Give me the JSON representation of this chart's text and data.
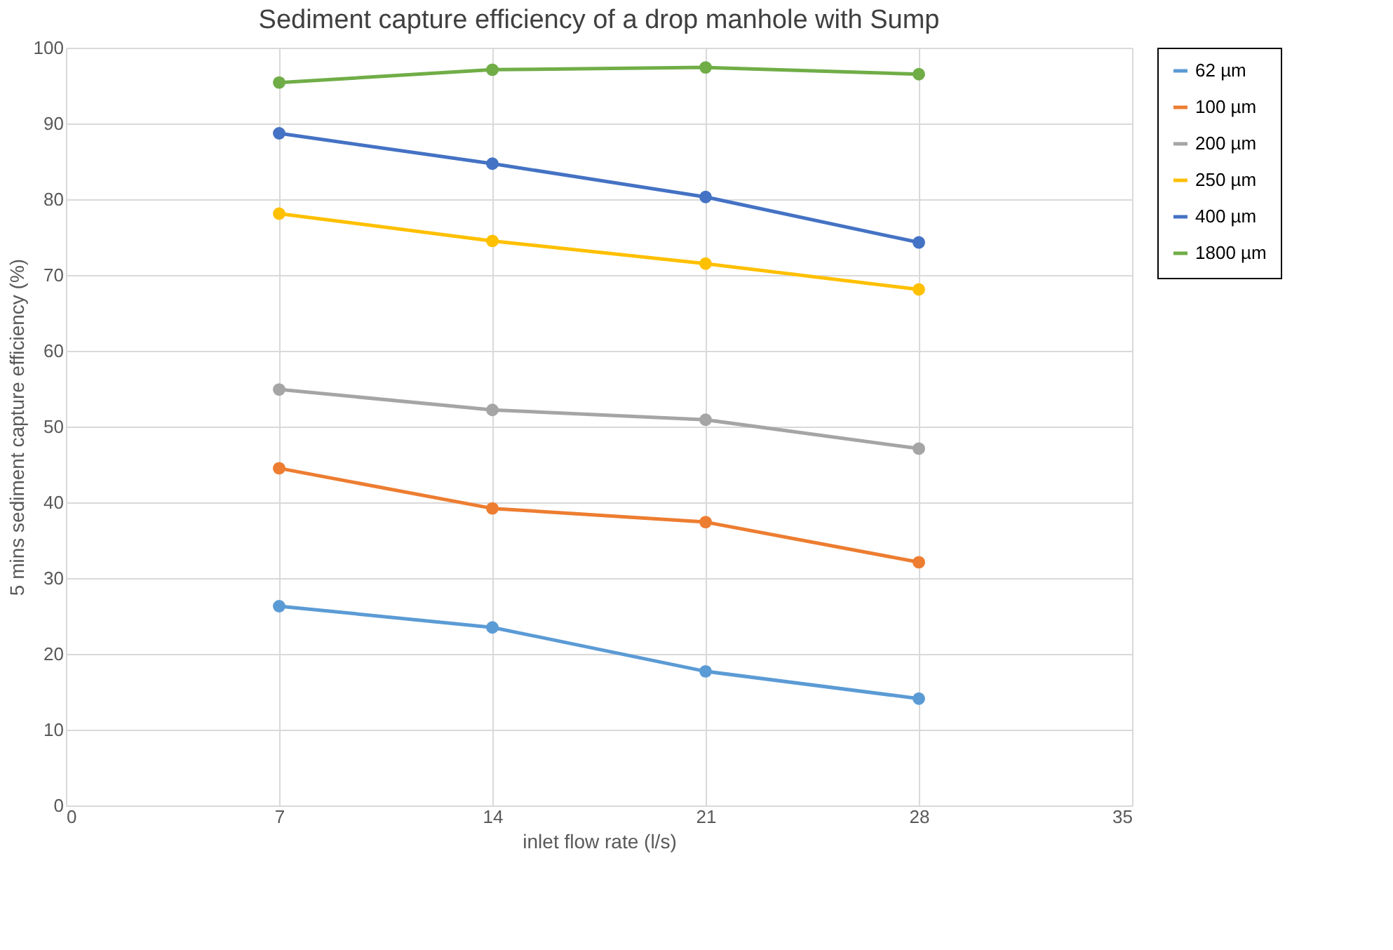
{
  "chart_data": {
    "type": "line",
    "title": "Sediment capture efficiency of a drop manhole with Sump",
    "xlabel": "inlet flow rate (l/s)",
    "ylabel": "5 mins sediment capture efficiency (%)",
    "x": [
      7,
      14,
      21,
      28
    ],
    "series": [
      {
        "name": "62 µm",
        "color": "#5b9bd5",
        "values": [
          26.3,
          23.5,
          17.7,
          14.1
        ]
      },
      {
        "name": "100 µm",
        "color": "#ed7d31",
        "values": [
          44.5,
          39.2,
          37.4,
          32.1
        ]
      },
      {
        "name": "200 µm",
        "color": "#a5a5a5",
        "values": [
          54.9,
          52.2,
          50.9,
          47.1
        ]
      },
      {
        "name": "250 µm",
        "color": "#ffc000",
        "values": [
          78.1,
          74.5,
          71.5,
          68.1
        ]
      },
      {
        "name": "400 µm",
        "color": "#4472c4",
        "values": [
          88.7,
          84.7,
          80.3,
          74.3
        ]
      },
      {
        "name": "1800 µm",
        "color": "#70ad47",
        "values": [
          95.4,
          97.1,
          97.4,
          96.5
        ]
      }
    ],
    "xlim": [
      0,
      35
    ],
    "xticks": [
      0,
      7,
      14,
      21,
      28,
      35
    ],
    "ylim": [
      0,
      100
    ],
    "yticks": [
      0,
      10,
      20,
      30,
      40,
      50,
      60,
      70,
      80,
      90,
      100
    ],
    "grid": true,
    "legend": "right",
    "marker": "circle",
    "line_style": "solid"
  }
}
